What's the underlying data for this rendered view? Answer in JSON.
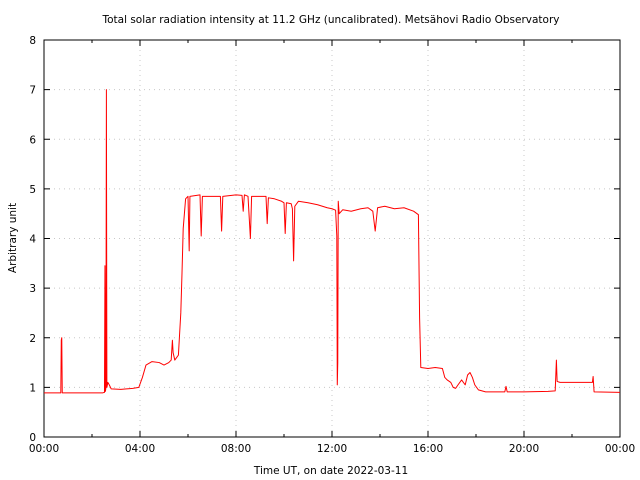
{
  "chart_data": {
    "type": "line",
    "title": "Total solar radiation intensity at 11.2 GHz (uncalibrated). Metsähovi Radio Observatory",
    "xlabel": "Time UT, on date 2022-03-11",
    "ylabel": "Arbitrary unit",
    "xlim": [
      0,
      24
    ],
    "ylim": [
      0,
      8
    ],
    "x_ticks": [
      {
        "value": 0,
        "label": "00:00"
      },
      {
        "value": 4,
        "label": "04:00"
      },
      {
        "value": 8,
        "label": "08:00"
      },
      {
        "value": 12,
        "label": "12:00"
      },
      {
        "value": 16,
        "label": "16:00"
      },
      {
        "value": 20,
        "label": "20:00"
      },
      {
        "value": 24,
        "label": "00:00"
      }
    ],
    "y_ticks": [
      {
        "value": 0,
        "label": "0"
      },
      {
        "value": 1,
        "label": "1"
      },
      {
        "value": 2,
        "label": "2"
      },
      {
        "value": 3,
        "label": "3"
      },
      {
        "value": 4,
        "label": "4"
      },
      {
        "value": 5,
        "label": "5"
      },
      {
        "value": 6,
        "label": "6"
      },
      {
        "value": 7,
        "label": "7"
      },
      {
        "value": 8,
        "label": "8"
      }
    ],
    "grid": true,
    "series_color": "#ff0000",
    "series": [
      {
        "points": [
          [
            0.0,
            0.89
          ],
          [
            0.7,
            0.89
          ],
          [
            0.72,
            1.95
          ],
          [
            0.74,
            2.0
          ],
          [
            0.76,
            0.89
          ],
          [
            1.5,
            0.89
          ],
          [
            2.45,
            0.89
          ],
          [
            2.52,
            0.9
          ],
          [
            2.54,
            3.45
          ],
          [
            2.56,
            0.92
          ],
          [
            2.58,
            1.0
          ],
          [
            2.6,
            7.0
          ],
          [
            2.62,
            1.0
          ],
          [
            2.66,
            1.1
          ],
          [
            2.72,
            1.05
          ],
          [
            2.8,
            0.97
          ],
          [
            3.2,
            0.96
          ],
          [
            3.7,
            0.98
          ],
          [
            3.95,
            1.0
          ],
          [
            4.1,
            1.2
          ],
          [
            4.25,
            1.45
          ],
          [
            4.5,
            1.52
          ],
          [
            4.8,
            1.5
          ],
          [
            5.0,
            1.45
          ],
          [
            5.2,
            1.5
          ],
          [
            5.3,
            1.55
          ],
          [
            5.35,
            1.95
          ],
          [
            5.38,
            1.7
          ],
          [
            5.45,
            1.55
          ],
          [
            5.6,
            1.65
          ],
          [
            5.7,
            2.5
          ],
          [
            5.75,
            3.3
          ],
          [
            5.8,
            4.2
          ],
          [
            5.85,
            4.5
          ],
          [
            5.9,
            4.8
          ],
          [
            6.0,
            4.85
          ],
          [
            6.05,
            3.75
          ],
          [
            6.08,
            4.85
          ],
          [
            6.5,
            4.88
          ],
          [
            6.55,
            4.05
          ],
          [
            6.6,
            4.85
          ],
          [
            7.0,
            4.85
          ],
          [
            7.35,
            4.85
          ],
          [
            7.4,
            4.15
          ],
          [
            7.45,
            4.85
          ],
          [
            8.0,
            4.88
          ],
          [
            8.25,
            4.87
          ],
          [
            8.3,
            4.55
          ],
          [
            8.35,
            4.88
          ],
          [
            8.5,
            4.85
          ],
          [
            8.6,
            4.0
          ],
          [
            8.65,
            4.85
          ],
          [
            9.0,
            4.85
          ],
          [
            9.25,
            4.85
          ],
          [
            9.3,
            4.3
          ],
          [
            9.35,
            4.82
          ],
          [
            9.6,
            4.8
          ],
          [
            9.9,
            4.75
          ],
          [
            10.0,
            4.72
          ],
          [
            10.05,
            4.1
          ],
          [
            10.1,
            4.72
          ],
          [
            10.3,
            4.7
          ],
          [
            10.35,
            4.6
          ],
          [
            10.4,
            3.55
          ],
          [
            10.45,
            4.65
          ],
          [
            10.6,
            4.75
          ],
          [
            11.0,
            4.72
          ],
          [
            11.4,
            4.68
          ],
          [
            11.8,
            4.62
          ],
          [
            12.0,
            4.6
          ],
          [
            12.15,
            4.57
          ],
          [
            12.2,
            4.05
          ],
          [
            12.22,
            1.05
          ],
          [
            12.24,
            1.5
          ],
          [
            12.26,
            4.75
          ],
          [
            12.3,
            4.5
          ],
          [
            12.45,
            4.58
          ],
          [
            12.8,
            4.55
          ],
          [
            13.2,
            4.6
          ],
          [
            13.5,
            4.62
          ],
          [
            13.7,
            4.55
          ],
          [
            13.8,
            4.15
          ],
          [
            13.9,
            4.62
          ],
          [
            14.2,
            4.65
          ],
          [
            14.6,
            4.6
          ],
          [
            15.0,
            4.62
          ],
          [
            15.4,
            4.55
          ],
          [
            15.6,
            4.48
          ],
          [
            15.65,
            2.4
          ],
          [
            15.7,
            1.4
          ],
          [
            16.0,
            1.38
          ],
          [
            16.3,
            1.4
          ],
          [
            16.6,
            1.38
          ],
          [
            16.7,
            1.2
          ],
          [
            16.8,
            1.15
          ],
          [
            16.95,
            1.1
          ],
          [
            17.05,
            1.0
          ],
          [
            17.15,
            0.98
          ],
          [
            17.25,
            1.05
          ],
          [
            17.4,
            1.15
          ],
          [
            17.55,
            1.05
          ],
          [
            17.65,
            1.25
          ],
          [
            17.75,
            1.3
          ],
          [
            17.85,
            1.2
          ],
          [
            17.95,
            1.05
          ],
          [
            18.1,
            0.95
          ],
          [
            18.4,
            0.91
          ],
          [
            19.2,
            0.91
          ],
          [
            19.25,
            1.02
          ],
          [
            19.3,
            0.91
          ],
          [
            20.0,
            0.91
          ],
          [
            21.0,
            0.92
          ],
          [
            21.3,
            0.93
          ],
          [
            21.35,
            1.55
          ],
          [
            21.38,
            1.12
          ],
          [
            21.5,
            1.1
          ],
          [
            22.3,
            1.1
          ],
          [
            22.85,
            1.1
          ],
          [
            22.88,
            1.22
          ],
          [
            22.92,
            0.91
          ],
          [
            24.0,
            0.9
          ]
        ]
      }
    ]
  }
}
